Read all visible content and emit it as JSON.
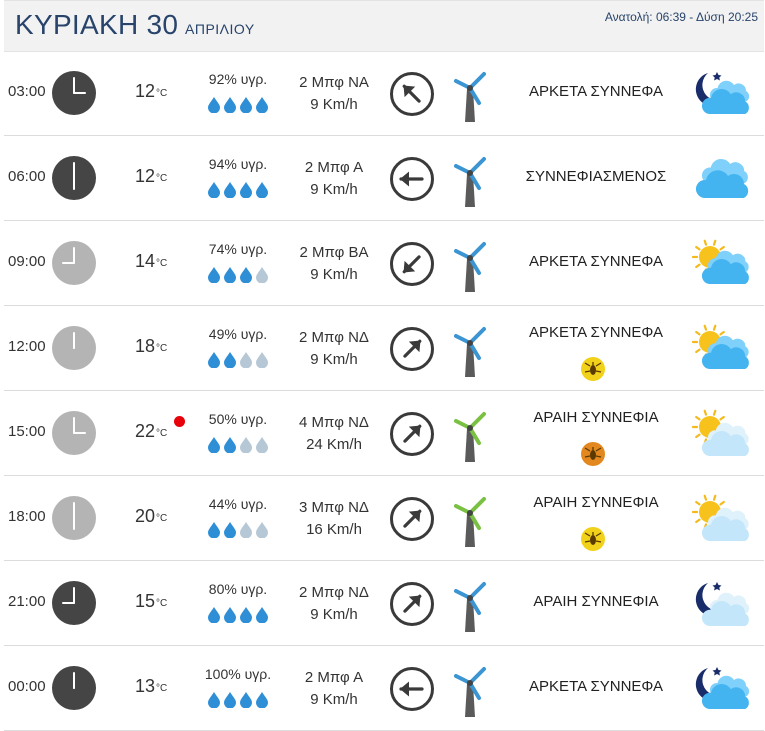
{
  "header": {
    "day": "ΚΥΡΙΑΚΗ 30",
    "month": "ΑΠΡΙΛΙΟΥ",
    "sun_times": "Ανατολή: 06:39  - Δύση 20:25"
  },
  "temp_unit": "°C",
  "colors": {
    "title": "#28446b",
    "drop_full": "#2f8fd6",
    "drop_empty": "#b6c8d6",
    "clock_night": "#454545",
    "clock_day": "#b4b4b4",
    "windmill_light": "#3c95d3",
    "windmill_strong": "#7ac143",
    "alert_dot": "#e8000b"
  },
  "rows": [
    {
      "time": "03:00",
      "clock": "night",
      "temp": "12",
      "hum_text": "92% υγρ.",
      "drops": 4,
      "wind_bf": "2 Μπφ ΝΑ",
      "wind_kmh": "9 Km/h",
      "wind_arrow": "arrow-up-left-icon",
      "windmill": "light",
      "condition": "ΑΡΚΕΤΑ ΣΥΝΝΕΦΑ",
      "weather_icon": "night-clouds-icon",
      "pollen": null,
      "alert": false
    },
    {
      "time": "06:00",
      "clock": "night",
      "temp": "12",
      "hum_text": "94% υγρ.",
      "drops": 4,
      "wind_bf": "2 Μπφ Α",
      "wind_kmh": "9 Km/h",
      "wind_arrow": "arrow-left-icon",
      "windmill": "light",
      "condition": "ΣΥΝΝΕΦΙΑΣΜΕΝΟΣ",
      "weather_icon": "cloudy-icon",
      "pollen": null,
      "alert": false
    },
    {
      "time": "09:00",
      "clock": "day",
      "temp": "14",
      "hum_text": "74% υγρ.",
      "drops": 3,
      "wind_bf": "2 Μπφ ΒΑ",
      "wind_kmh": "9 Km/h",
      "wind_arrow": "arrow-down-left-icon",
      "windmill": "light",
      "condition": "ΑΡΚΕΤΑ ΣΥΝΝΕΦΑ",
      "weather_icon": "sun-clouds-icon",
      "pollen": null,
      "alert": false
    },
    {
      "time": "12:00",
      "clock": "day",
      "temp": "18",
      "hum_text": "49% υγρ.",
      "drops": 2,
      "wind_bf": "2 Μπφ ΝΔ",
      "wind_kmh": "9 Km/h",
      "wind_arrow": "arrow-up-right-icon",
      "windmill": "light",
      "condition": "ΑΡΚΕΤΑ ΣΥΝΝΕΦΑ",
      "weather_icon": "sun-clouds-icon",
      "pollen": "yellow",
      "alert": false
    },
    {
      "time": "15:00",
      "clock": "day",
      "temp": "22",
      "hum_text": "50% υγρ.",
      "drops": 2,
      "wind_bf": "4 Μπφ ΝΔ",
      "wind_kmh": "24 Km/h",
      "wind_arrow": "arrow-up-right-icon",
      "windmill": "strong",
      "condition": "ΑΡΑΙΗ ΣΥΝΝΕΦΙΑ",
      "weather_icon": "sun-light-clouds-icon",
      "pollen": "orange",
      "alert": true
    },
    {
      "time": "18:00",
      "clock": "day",
      "temp": "20",
      "hum_text": "44% υγρ.",
      "drops": 2,
      "wind_bf": "3 Μπφ ΝΔ",
      "wind_kmh": "16 Km/h",
      "wind_arrow": "arrow-up-right-icon",
      "windmill": "strong",
      "condition": "ΑΡΑΙΗ ΣΥΝΝΕΦΙΑ",
      "weather_icon": "sun-light-clouds-icon",
      "pollen": "yellow",
      "alert": false
    },
    {
      "time": "21:00",
      "clock": "night",
      "temp": "15",
      "hum_text": "80% υγρ.",
      "drops": 4,
      "wind_bf": "2 Μπφ ΝΔ",
      "wind_kmh": "9 Km/h",
      "wind_arrow": "arrow-up-right-icon",
      "windmill": "light",
      "condition": "ΑΡΑΙΗ ΣΥΝΝΕΦΙΑ",
      "weather_icon": "night-light-clouds-icon",
      "pollen": null,
      "alert": false
    },
    {
      "time": "00:00",
      "clock": "night",
      "temp": "13",
      "hum_text": "100% υγρ.",
      "drops": 4,
      "wind_bf": "2 Μπφ Α",
      "wind_kmh": "9 Km/h",
      "wind_arrow": "arrow-left-icon",
      "windmill": "light",
      "condition": "ΑΡΚΕΤΑ ΣΥΝΝΕΦΑ",
      "weather_icon": "night-clouds-icon",
      "pollen": null,
      "alert": false
    }
  ]
}
